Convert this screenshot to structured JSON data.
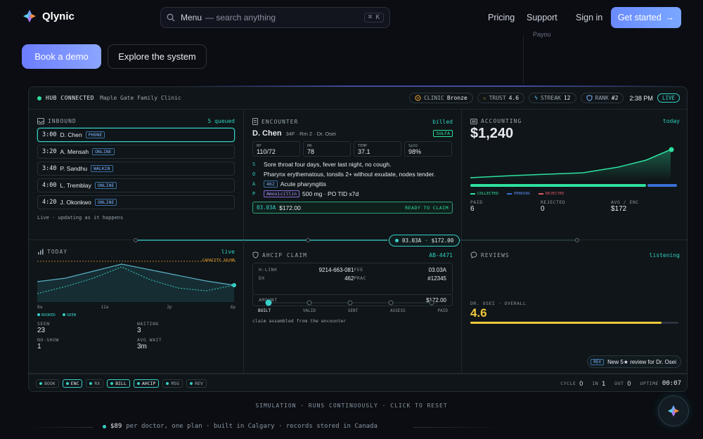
{
  "nav": {
    "brand": "Qlynic",
    "search_label": "Menu",
    "search_placeholder": "— search anything",
    "search_kbd": "⌘ K",
    "pricing": "Pricing",
    "support": "Support",
    "signin": "Sign in",
    "get_started": "Get started",
    "get_started_arrow": "→"
  },
  "hero": {
    "book_demo": "Book a demo",
    "explore": "Explore the system",
    "partial_text": "Payou"
  },
  "hub": {
    "status": "HUB CONNECTED",
    "clinic_name": "Maple Gate Family Clinic",
    "clinic_label": "CLINIC",
    "clinic_value": "Bronze",
    "trust_label": "TRUST",
    "trust_value": "4.6",
    "streak_label": "STREAK",
    "streak_value": "12",
    "rank_label": "RANK",
    "rank_value": "#2",
    "time": "2:38 PM",
    "live": "LIVE"
  },
  "inbound": {
    "title": "INBOUND",
    "count": "5 queued",
    "items": [
      {
        "time": "3:00",
        "name": "D. Chen",
        "tag": "PHONE"
      },
      {
        "time": "3:20",
        "name": "A. Mensah",
        "tag": "ONLINE"
      },
      {
        "time": "3:40",
        "name": "P. Sandhu",
        "tag": "WALKIN"
      },
      {
        "time": "4:00",
        "name": "L. Tremblay",
        "tag": "ONLINE"
      },
      {
        "time": "4:20",
        "name": "J. Okonkwo",
        "tag": "ONLINE"
      }
    ],
    "footer": "Live · updating as it happens"
  },
  "encounter": {
    "title": "ENCOUNTER",
    "status": "billed",
    "patient": "D. Chen",
    "meta": "34F · Rm 2 · Dr. Osei",
    "allergy": "SULFA",
    "vitals": [
      {
        "label": "BP",
        "value": "110/72"
      },
      {
        "label": "HR",
        "value": "78"
      },
      {
        "label": "TEMP",
        "value": "37.1"
      },
      {
        "label": "SpO2",
        "value": "98%"
      }
    ],
    "s_key": "S",
    "s": "Sore throat four days, fever last night, no cough.",
    "o_key": "O",
    "o": "Pharynx erythematous, tonsils 2+ without exudate, nodes tender.",
    "a_key": "A",
    "a_code": "462",
    "a": "Acute pharyngitis",
    "p_key": "P",
    "p_drug": "Amoxicillin",
    "p": "500 mg · PO TID x7d",
    "claim_code": "03.03A",
    "claim_amount": "$172.00",
    "claim_status": "READY TO CLAIM"
  },
  "accounting": {
    "title": "ACCOUNTING",
    "period": "today",
    "total": "$1,240",
    "legend": [
      "COLLECTED",
      "PENDING",
      "REJECTED"
    ],
    "paid_label": "PAID",
    "paid": "6",
    "rejected_label": "REJECTED",
    "rejected": "0",
    "avg_label": "AVG / ENC",
    "avg": "$172"
  },
  "flow_badge": {
    "code": "03.03A",
    "amount": "$172.00"
  },
  "today": {
    "title": "TODAY",
    "status": "live",
    "capacity": "CAPACITY 18/HR",
    "xticks": [
      "8a",
      "11a",
      "2p",
      "6p"
    ],
    "legend": [
      "BOOKED",
      "SEEN"
    ],
    "seen_label": "SEEN",
    "seen": "23",
    "waiting_label": "WAITING",
    "waiting": "3",
    "noshow_label": "NO-SHOW",
    "noshow": "1",
    "avgwait_label": "AVG WAIT",
    "avgwait": "3m"
  },
  "ahcip": {
    "title": "AHCIP CLAIM",
    "claim_id": "AB-4471",
    "hlink_label": "H-LINK",
    "hlink": "9214-663-081",
    "fee_label": "FEE",
    "fee": "03.03A",
    "dx_label": "DX",
    "dx": "462",
    "prac_label": "PRAC",
    "prac": "#12345",
    "amount_label": "AMOUNT",
    "amount": "$172.00",
    "steps": [
      "BUILT",
      "VALID",
      "SENT",
      "ASSESS",
      "PAID"
    ],
    "note": "claim assembled from the encounter"
  },
  "reviews": {
    "title": "REVIEWS",
    "status": "listening",
    "doctor_label": "DR. OSEI · OVERALL",
    "rating": "4.6",
    "rating_fraction": 0.92,
    "toast_tag": "REV",
    "toast": "New 5★ review for Dr. Osei"
  },
  "bottom": {
    "chips": [
      "BOOK",
      "ENC",
      "RX",
      "BILL",
      "AHCIP",
      "MSG",
      "REV"
    ],
    "cycle_label": "CYCLE",
    "cycle": "0",
    "in_label": "IN",
    "in": "1",
    "out_label": "OUT",
    "out": "0",
    "uptime_label": "UPTIME",
    "uptime": "00:07"
  },
  "footer": {
    "simulation": "SIMULATION · RUNS CONTINUOUSLY · CLICK TO RESET",
    "price": "$89",
    "tagline": "per doctor, one plan · built in Calgary · records stored in Canada"
  },
  "colors": {
    "accent": "#38cfc8",
    "green": "#2fe0a0",
    "blue": "#6a8bff",
    "yellow": "#f0c83a",
    "orange": "#f0a030"
  }
}
